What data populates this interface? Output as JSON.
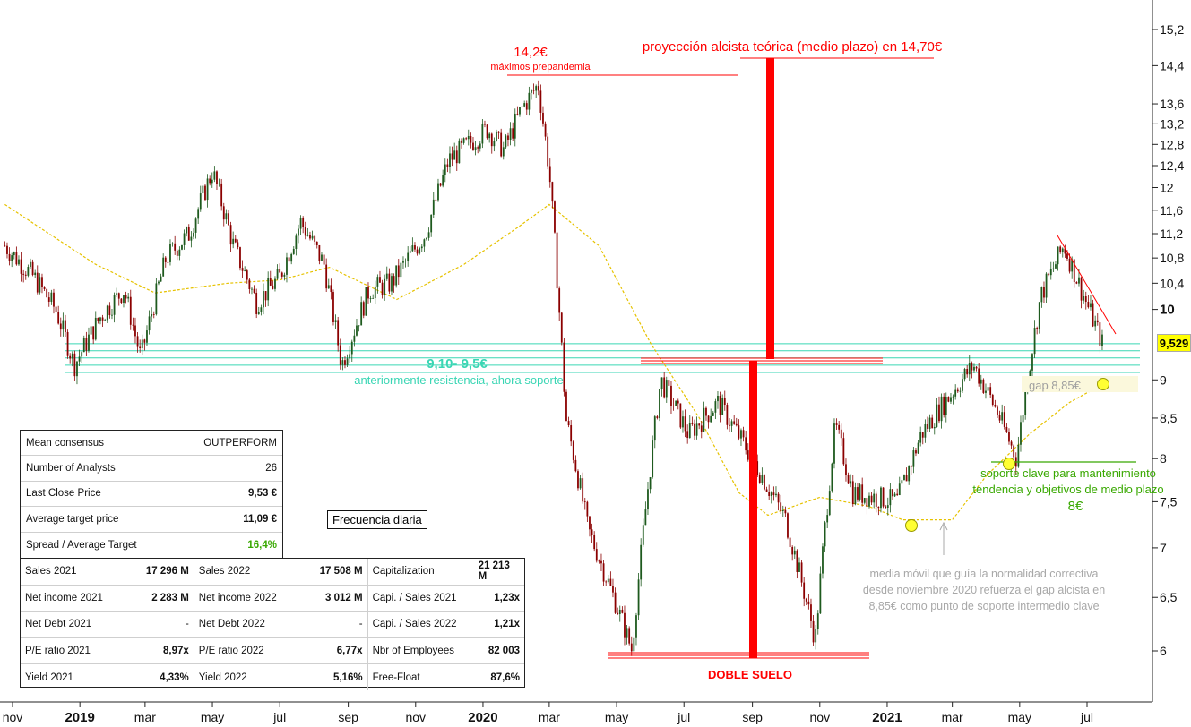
{
  "chart_data": {
    "type": "candlestick",
    "title": "",
    "y_axis": {
      "ticks": [
        "15,2",
        "14,4",
        "13,6",
        "13,2",
        "12,8",
        "12,4",
        "12",
        "11,6",
        "11,2",
        "10,8",
        "10,4",
        "10",
        "9",
        "8,5",
        "8",
        "7,5",
        "7",
        "6,5",
        "6"
      ],
      "tick_values": [
        15.2,
        14.4,
        13.6,
        13.2,
        12.8,
        12.4,
        12,
        11.6,
        11.2,
        10.8,
        10.4,
        10,
        9,
        8.5,
        8,
        7.5,
        7,
        6.5,
        6
      ],
      "scale": "log",
      "ylim": [
        5.7,
        15.6
      ]
    },
    "x_axis": {
      "labels": [
        {
          "text": "nov",
          "bold": false
        },
        {
          "text": "2019",
          "bold": true
        },
        {
          "text": "mar",
          "bold": false
        },
        {
          "text": "may",
          "bold": false
        },
        {
          "text": "jul",
          "bold": false
        },
        {
          "text": "sep",
          "bold": false
        },
        {
          "text": "nov",
          "bold": false
        },
        {
          "text": "2020",
          "bold": true
        },
        {
          "text": "mar",
          "bold": false
        },
        {
          "text": "may",
          "bold": false
        },
        {
          "text": "jul",
          "bold": false
        },
        {
          "text": "sep",
          "bold": false
        },
        {
          "text": "nov",
          "bold": false
        },
        {
          "text": "2021",
          "bold": true
        },
        {
          "text": "mar",
          "bold": false
        },
        {
          "text": "may",
          "bold": false
        },
        {
          "text": "jul",
          "bold": false
        }
      ]
    },
    "price_path": [
      {
        "date": "2018-10-25",
        "value": 11.0
      },
      {
        "date": "2018-11-20",
        "value": 10.5
      },
      {
        "date": "2018-12-10",
        "value": 10.0
      },
      {
        "date": "2018-12-27",
        "value": 9.2
      },
      {
        "date": "2019-01-20",
        "value": 9.9
      },
      {
        "date": "2019-02-10",
        "value": 10.3
      },
      {
        "date": "2019-02-25",
        "value": 9.3
      },
      {
        "date": "2019-03-20",
        "value": 10.8
      },
      {
        "date": "2019-04-10",
        "value": 11.2
      },
      {
        "date": "2019-05-01",
        "value": 12.3
      },
      {
        "date": "2019-05-20",
        "value": 11.0
      },
      {
        "date": "2019-06-10",
        "value": 10.1
      },
      {
        "date": "2019-07-01",
        "value": 10.5
      },
      {
        "date": "2019-07-20",
        "value": 11.4
      },
      {
        "date": "2019-08-10",
        "value": 10.7
      },
      {
        "date": "2019-08-26",
        "value": 9.2
      },
      {
        "date": "2019-09-20",
        "value": 10.3
      },
      {
        "date": "2019-10-10",
        "value": 10.4
      },
      {
        "date": "2019-11-10",
        "value": 11.2
      },
      {
        "date": "2019-12-01",
        "value": 12.5
      },
      {
        "date": "2020-01-05",
        "value": 13.1
      },
      {
        "date": "2020-01-20",
        "value": 12.7
      },
      {
        "date": "2020-02-05",
        "value": 13.5
      },
      {
        "date": "2020-02-20",
        "value": 14.0
      },
      {
        "date": "2020-03-01",
        "value": 12.3
      },
      {
        "date": "2020-03-10",
        "value": 10.0
      },
      {
        "date": "2020-03-16",
        "value": 8.5
      },
      {
        "date": "2020-04-05",
        "value": 7.2
      },
      {
        "date": "2020-05-15",
        "value": 6.0
      },
      {
        "date": "2020-06-10",
        "value": 9.0
      },
      {
        "date": "2020-07-05",
        "value": 8.3
      },
      {
        "date": "2020-08-01",
        "value": 8.7
      },
      {
        "date": "2020-09-01",
        "value": 8.0
      },
      {
        "date": "2020-10-01",
        "value": 7.3
      },
      {
        "date": "2020-10-28",
        "value": 6.1
      },
      {
        "date": "2020-11-15",
        "value": 8.4
      },
      {
        "date": "2020-12-01",
        "value": 7.6
      },
      {
        "date": "2021-01-10",
        "value": 7.5
      },
      {
        "date": "2021-02-01",
        "value": 8.3
      },
      {
        "date": "2021-03-20",
        "value": 9.2
      },
      {
        "date": "2021-04-10",
        "value": 8.6
      },
      {
        "date": "2021-04-28",
        "value": 8.0
      },
      {
        "date": "2021-05-20",
        "value": 10.2
      },
      {
        "date": "2021-06-10",
        "value": 11.0
      },
      {
        "date": "2021-06-28",
        "value": 10.2
      },
      {
        "date": "2021-07-15",
        "value": 9.5
      }
    ],
    "moving_average": [
      {
        "date": "2018-10-25",
        "value": 11.7
      },
      {
        "date": "2019-01-15",
        "value": 10.7
      },
      {
        "date": "2019-03-10",
        "value": 10.25
      },
      {
        "date": "2019-05-15",
        "value": 10.4
      },
      {
        "date": "2019-07-01",
        "value": 10.45
      },
      {
        "date": "2019-08-15",
        "value": 10.65
      },
      {
        "date": "2019-10-15",
        "value": 10.15
      },
      {
        "date": "2019-12-15",
        "value": 10.7
      },
      {
        "date": "2020-02-01",
        "value": 11.3
      },
      {
        "date": "2020-03-01",
        "value": 11.7
      },
      {
        "date": "2020-04-15",
        "value": 11.0
      },
      {
        "date": "2020-06-01",
        "value": 9.5
      },
      {
        "date": "2020-07-15",
        "value": 8.5
      },
      {
        "date": "2020-08-20",
        "value": 7.6
      },
      {
        "date": "2020-09-15",
        "value": 7.35
      },
      {
        "date": "2020-11-01",
        "value": 7.55
      },
      {
        "date": "2020-12-15",
        "value": 7.45
      },
      {
        "date": "2021-01-15",
        "value": 7.3
      },
      {
        "date": "2021-03-01",
        "value": 7.3
      },
      {
        "date": "2021-04-01",
        "value": 7.8
      },
      {
        "date": "2021-05-10",
        "value": 8.3
      },
      {
        "date": "2021-06-15",
        "value": 8.7
      },
      {
        "date": "2021-07-10",
        "value": 8.9
      }
    ],
    "last_price": "9,529",
    "annotations": {
      "pre_pandemic_value": "14,2€",
      "pre_pandemic_text": "máximos prepandemia",
      "projection": "proyección alcista teórica (medio plazo) en 14,70€",
      "support_zone_value": "9,10- 9,5€",
      "support_zone_text": "anteriormente resistencia, ahora soporte",
      "double_bottom": "DOBLE SUELO",
      "gap": "gap 8,85€",
      "key_support_line1": "soporte clave para mantenimiento",
      "key_support_line2": "tendencia y objetivos de medio plazo",
      "key_support_value": "8€",
      "ma_note_line1": "media móvil que guía la normalidad correctiva",
      "ma_note_line2": "desde noviembre 2020 refuerza el gap alcista en",
      "ma_note_line3": "8,85€ como punto de soporte intermedio clave"
    },
    "frequency": "Frecuencia diaria",
    "colors": {
      "up": "#1e5a1e",
      "down": "#8b0000",
      "ma": "#e6c200",
      "support": "#3ad6b4",
      "red": "#ff0000",
      "green": "#38a800"
    }
  },
  "consensus": [
    {
      "label": "Mean consensus",
      "value": "OUTPERFORM",
      "bold": false,
      "color": "#111111"
    },
    {
      "label": "Number of Analysts",
      "value": "26",
      "bold": false,
      "color": "#111111"
    },
    {
      "label": "Last Close Price",
      "value": "9,53 €",
      "bold": true,
      "color": "#111111"
    },
    {
      "label": "Average target price",
      "value": "11,09 €",
      "bold": true,
      "color": "#111111"
    },
    {
      "label": "Spread / Average Target",
      "value": "16,4%",
      "bold": true,
      "color": "#38a800"
    }
  ],
  "fundamentals": [
    [
      {
        "l": "Sales 2021",
        "v": "17 296 M"
      },
      {
        "l": "Sales 2022",
        "v": "17 508 M"
      },
      {
        "l": "Capitalization",
        "v": "21 213 M"
      }
    ],
    [
      {
        "l": "Net income 2021",
        "v": "2 283 M"
      },
      {
        "l": "Net income 2022",
        "v": "3 012 M"
      },
      {
        "l": "Capi. / Sales 2021",
        "v": "1,23x"
      }
    ],
    [
      {
        "l": "Net Debt 2021",
        "v": "-"
      },
      {
        "l": "Net Debt 2022",
        "v": "-"
      },
      {
        "l": "Capi. / Sales 2022",
        "v": "1,21x"
      }
    ],
    [
      {
        "l": "P/E ratio 2021",
        "v": "8,97x"
      },
      {
        "l": "P/E ratio 2022",
        "v": "6,77x"
      },
      {
        "l": "Nbr of Employees",
        "v": "82 003"
      }
    ],
    [
      {
        "l": "Yield 2021",
        "v": "4,33%"
      },
      {
        "l": "Yield 2022",
        "v": "5,16%"
      },
      {
        "l": "Free-Float",
        "v": "87,6%"
      }
    ]
  ]
}
